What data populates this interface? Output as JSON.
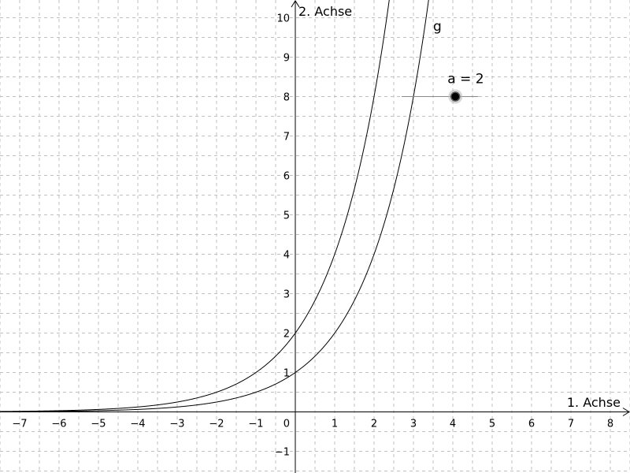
{
  "chart_data": {
    "type": "line",
    "xlabel": "1. Achse",
    "ylabel": "2. Achse",
    "xlim": [
      -7.5,
      8.5
    ],
    "ylim": [
      -1.55,
      10.45
    ],
    "grid": true,
    "x_ticks": [
      "−7",
      "−6",
      "−5",
      "−4",
      "−3",
      "−2",
      "−1",
      "1",
      "2",
      "3",
      "4",
      "5",
      "6",
      "7",
      "8"
    ],
    "y_ticks": [
      "−1",
      "1",
      "2",
      "3",
      "4",
      "5",
      "6",
      "7",
      "8",
      "9",
      "10"
    ],
    "origin_label": "0",
    "x_tick_values": [
      -7,
      -6,
      -5,
      -4,
      -3,
      -2,
      -1,
      1,
      2,
      3,
      4,
      5,
      6,
      7,
      8
    ],
    "y_tick_values": [
      -1,
      1,
      2,
      3,
      4,
      5,
      6,
      7,
      8,
      9,
      10
    ],
    "series": [
      {
        "label": "",
        "base": 2,
        "factor": 2
      },
      {
        "label": "g",
        "base": 2,
        "factor": 1
      }
    ],
    "slider": {
      "label": "a = 2",
      "value": 2,
      "min": -5,
      "max": 5,
      "y": 8,
      "x_start": 2.7,
      "x_end": 4.65
    }
  }
}
